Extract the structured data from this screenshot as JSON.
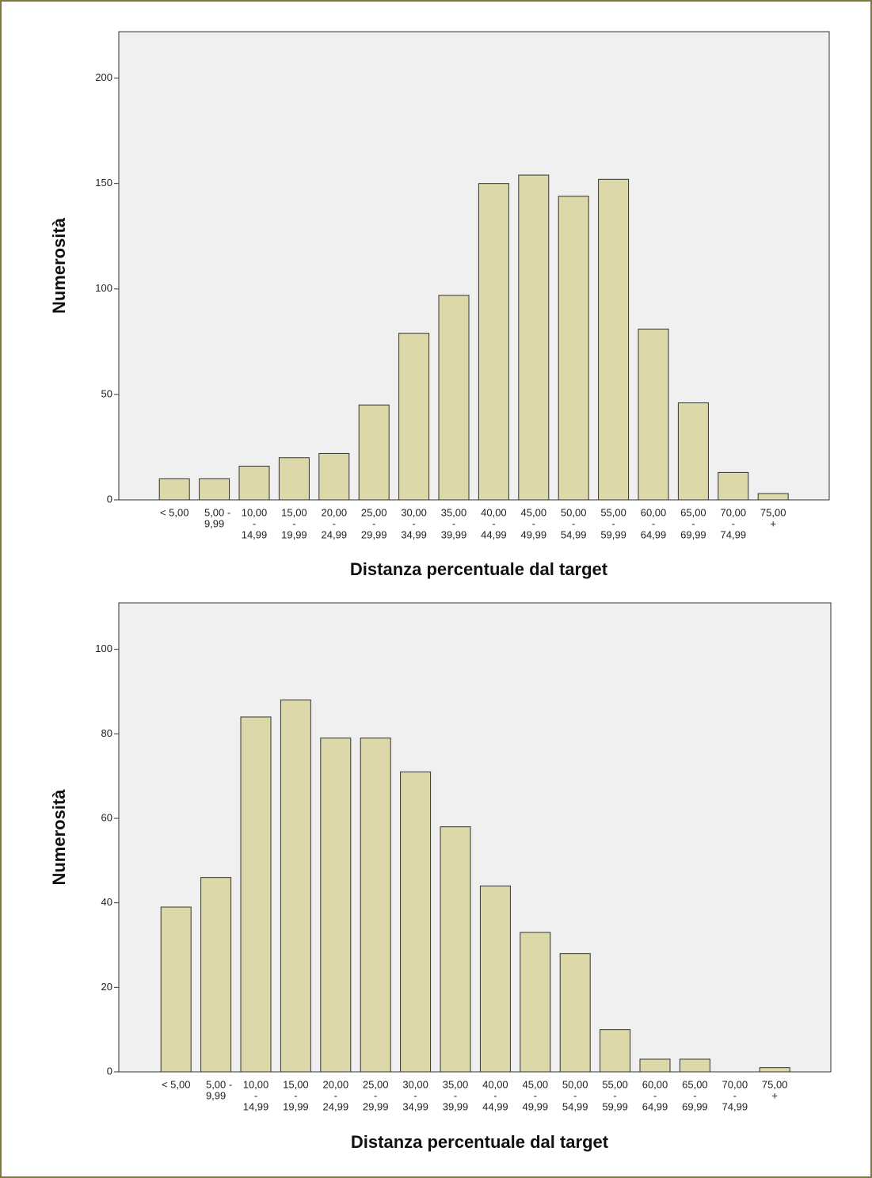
{
  "chart_data": [
    {
      "type": "bar",
      "x_label": "Distanza percentuale dal target",
      "y_label": "Numerosità",
      "categories": [
        [
          "< 5,00"
        ],
        [
          "5,00 -",
          "9,99"
        ],
        [
          "10,00",
          "-",
          "14,99"
        ],
        [
          "15,00",
          "-",
          "19,99"
        ],
        [
          "20,00",
          "-",
          "24,99"
        ],
        [
          "25,00",
          "-",
          "29,99"
        ],
        [
          "30,00",
          "-",
          "34,99"
        ],
        [
          "35,00",
          "-",
          "39,99"
        ],
        [
          "40,00",
          "-",
          "44,99"
        ],
        [
          "45,00",
          "-",
          "49,99"
        ],
        [
          "50,00",
          "-",
          "54,99"
        ],
        [
          "55,00",
          "-",
          "59,99"
        ],
        [
          "60,00",
          "-",
          "64,99"
        ],
        [
          "65,00",
          "-",
          "69,99"
        ],
        [
          "70,00",
          "-",
          "74,99"
        ],
        [
          "75,00",
          "+"
        ]
      ],
      "values": [
        10,
        10,
        16,
        20,
        22,
        45,
        79,
        97,
        150,
        154,
        144,
        152,
        81,
        46,
        13,
        3
      ],
      "color": "#dcd8aa",
      "ylim": [
        0,
        222
      ],
      "yticks": [
        0,
        50,
        100,
        150,
        200
      ]
    },
    {
      "type": "bar",
      "x_label": "Distanza percentuale dal target",
      "y_label": "Numerosità",
      "categories": [
        [
          "< 5,00"
        ],
        [
          "5,00 -",
          "9,99"
        ],
        [
          "10,00",
          "-",
          "14,99"
        ],
        [
          "15,00",
          "-",
          "19,99"
        ],
        [
          "20,00",
          "-",
          "24,99"
        ],
        [
          "25,00",
          "-",
          "29,99"
        ],
        [
          "30,00",
          "-",
          "34,99"
        ],
        [
          "35,00",
          "-",
          "39,99"
        ],
        [
          "40,00",
          "-",
          "44,99"
        ],
        [
          "45,00",
          "-",
          "49,99"
        ],
        [
          "50,00",
          "-",
          "54,99"
        ],
        [
          "55,00",
          "-",
          "59,99"
        ],
        [
          "60,00",
          "-",
          "64,99"
        ],
        [
          "65,00",
          "-",
          "69,99"
        ],
        [
          "70,00",
          "-",
          "74,99"
        ],
        [
          "75,00",
          "+"
        ]
      ],
      "values": [
        39,
        46,
        84,
        88,
        79,
        79,
        71,
        58,
        44,
        33,
        28,
        10,
        3,
        3,
        0,
        1
      ],
      "color": "#dcd8aa",
      "ylim": [
        0,
        111
      ],
      "yticks": [
        0,
        20,
        40,
        60,
        80,
        100
      ]
    }
  ]
}
